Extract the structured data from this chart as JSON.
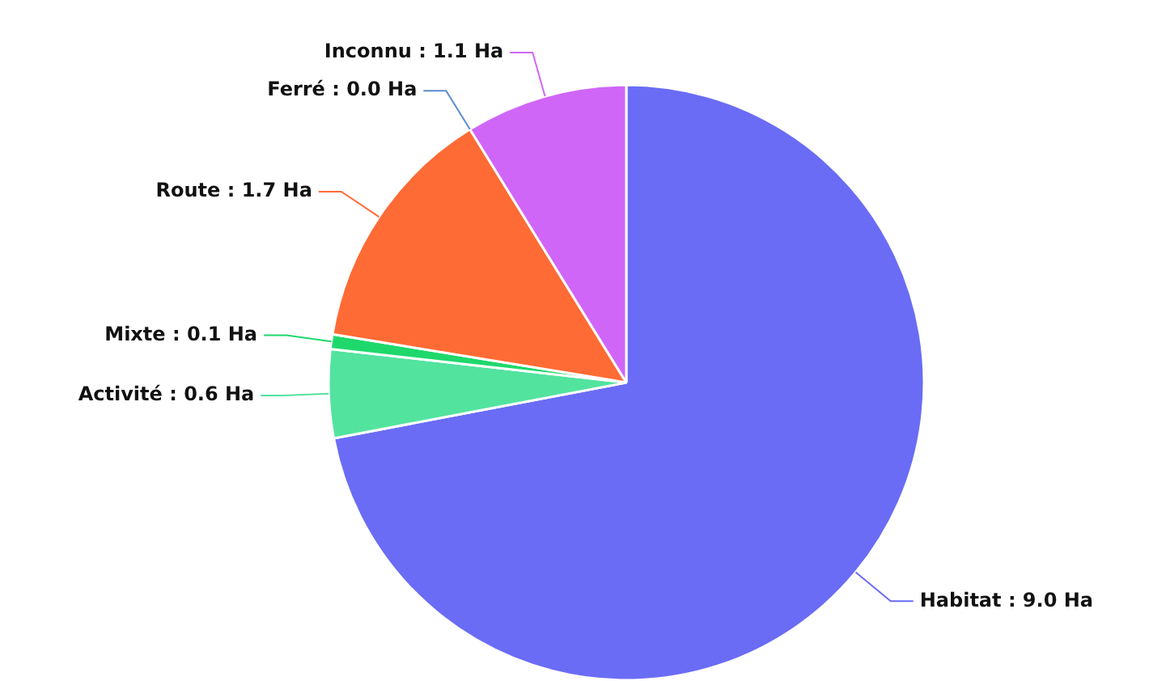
{
  "chart_data": {
    "type": "pie",
    "categories": [
      "Habitat",
      "Activité",
      "Mixte",
      "Route",
      "Ferré",
      "Inconnu"
    ],
    "values": [
      9.0,
      0.6,
      0.1,
      1.7,
      0.0,
      1.1
    ],
    "colors": [
      "#6a6cf5",
      "#52e39f",
      "#1fd86c",
      "#ff6b35",
      "#5a8ccf",
      "#d066f7"
    ],
    "value_labels": [
      ": 9.0 Ha",
      ": 0.6 Ha",
      ": 0.1 Ha",
      ": 1.7 Ha",
      ": 0.0 Ha",
      ": 1.1 Ha"
    ],
    "legend": false
  }
}
